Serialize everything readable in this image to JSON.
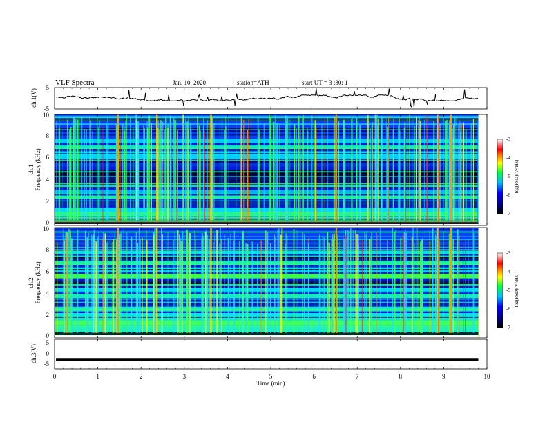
{
  "header": {
    "title": "VLF  Spectra",
    "date": "Jan. 10, 2020",
    "station": "station=ATH",
    "start": "start  UT =   3  :30: 1"
  },
  "colors": {
    "waveform": "#000000",
    "background": "#ffffff"
  },
  "chart_data": [
    {
      "type": "line",
      "panel": "ch1-waveform",
      "ylabel": "ch.1(V)",
      "ylim": [
        -5,
        5
      ],
      "yticks": [
        "5",
        "-5"
      ],
      "xlim": [
        0,
        10
      ],
      "x_extent_min": 9.8,
      "approx_level": 0.3
    },
    {
      "type": "heatmap",
      "panel": "ch1-spectrogram",
      "ylabel_lines": [
        "ch.1",
        "Frequency  (kHz)"
      ],
      "ylim": [
        0,
        10
      ],
      "yticks": [
        "0",
        "2",
        "4",
        "6",
        "8",
        "10"
      ],
      "xlim": [
        0,
        10
      ],
      "x_extent_min": 9.8,
      "colorbar": {
        "label": "log(PSD)(V²/Hz)",
        "ticks": [
          "-3",
          "-4",
          "-5",
          "-6",
          "-7"
        ],
        "range": [
          -7,
          -3
        ]
      }
    },
    {
      "type": "heatmap",
      "panel": "ch2-spectrogram",
      "ylabel_lines": [
        "ch.2",
        "Frequency  (kHz)"
      ],
      "ylim": [
        0,
        10
      ],
      "yticks": [
        "0",
        "2",
        "4",
        "6",
        "8",
        "10"
      ],
      "xlim": [
        0,
        10
      ],
      "x_extent_min": 9.8,
      "colorbar": {
        "label": "log(PSD)(V²/Hz)",
        "ticks": [
          "-3",
          "-4",
          "-5",
          "-6",
          "-7"
        ],
        "range": [
          -7,
          -3
        ]
      }
    },
    {
      "type": "line",
      "panel": "ch3-waveform",
      "ylabel": "ch.3(V)",
      "ylim": [
        -5,
        5
      ],
      "yticks": [
        "5",
        "0",
        "-5"
      ],
      "xlim": [
        0,
        10
      ],
      "x_extent_min": 9.8,
      "approx_level": -1.8
    }
  ],
  "xaxis": {
    "label": "Time  (min)",
    "ticks": [
      "0",
      "1",
      "2",
      "3",
      "4",
      "5",
      "6",
      "7",
      "8",
      "9",
      "10"
    ]
  }
}
